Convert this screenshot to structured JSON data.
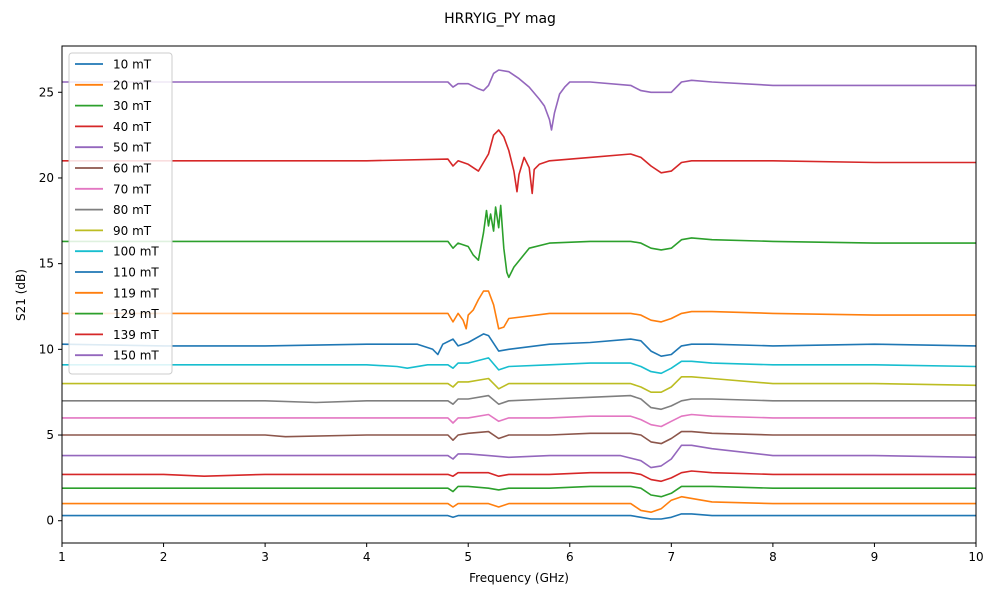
{
  "chart_data": {
    "type": "line",
    "title": "HRRYIG_PY mag",
    "xlabel": "Frequency (GHz)",
    "ylabel": "S21 (dB)",
    "xlim": [
      1,
      10
    ],
    "ylim": [
      -1.3,
      27.7
    ],
    "xticks": [
      1,
      2,
      3,
      4,
      5,
      6,
      7,
      8,
      9,
      10
    ],
    "yticks": [
      0,
      5,
      10,
      15,
      20,
      25
    ],
    "grid": false,
    "legend_position": "top-left",
    "series": [
      {
        "name": "10 mT",
        "color": "#1f77b4",
        "x": [
          1,
          2,
          3,
          4,
          4.8,
          4.85,
          4.9,
          5.0,
          5.2,
          5.4,
          5.8,
          6.2,
          6.6,
          6.7,
          6.8,
          6.9,
          7.0,
          7.1,
          7.2,
          7.4,
          8,
          9,
          10
        ],
        "y": [
          0.3,
          0.3,
          0.3,
          0.3,
          0.3,
          0.2,
          0.3,
          0.3,
          0.3,
          0.3,
          0.3,
          0.3,
          0.3,
          0.2,
          0.1,
          0.1,
          0.2,
          0.4,
          0.4,
          0.3,
          0.3,
          0.3,
          0.3
        ]
      },
      {
        "name": "20 mT",
        "color": "#ff7f0e",
        "x": [
          1,
          2,
          3,
          4,
          4.8,
          4.85,
          4.9,
          5.0,
          5.2,
          5.3,
          5.4,
          5.8,
          6.2,
          6.6,
          6.7,
          6.8,
          6.9,
          7.0,
          7.1,
          7.2,
          7.4,
          8,
          9,
          10
        ],
        "y": [
          1.0,
          1.0,
          1.0,
          1.0,
          1.0,
          0.8,
          1.0,
          1.0,
          1.0,
          0.8,
          1.0,
          1.0,
          1.0,
          1.0,
          0.6,
          0.5,
          0.7,
          1.2,
          1.4,
          1.3,
          1.1,
          1.0,
          1.0,
          1.0
        ]
      },
      {
        "name": "30 mT",
        "color": "#2ca02c",
        "x": [
          1,
          2,
          3,
          4,
          4.8,
          4.85,
          4.9,
          5.0,
          5.2,
          5.3,
          5.4,
          5.8,
          6.2,
          6.6,
          6.7,
          6.8,
          6.9,
          7.0,
          7.1,
          7.2,
          7.4,
          8,
          9,
          10
        ],
        "y": [
          1.9,
          1.9,
          1.9,
          1.9,
          1.9,
          1.7,
          2.0,
          2.0,
          1.9,
          1.8,
          1.9,
          1.9,
          2.0,
          2.0,
          1.9,
          1.5,
          1.4,
          1.6,
          2.0,
          2.0,
          2.0,
          1.9,
          1.9,
          1.9
        ]
      },
      {
        "name": "40 mT",
        "color": "#d62728",
        "x": [
          1,
          2,
          2.4,
          3,
          4,
          4.8,
          4.85,
          4.9,
          5.0,
          5.2,
          5.3,
          5.4,
          5.8,
          6.2,
          6.6,
          6.7,
          6.8,
          6.9,
          7.0,
          7.1,
          7.2,
          7.4,
          8,
          9,
          10
        ],
        "y": [
          2.7,
          2.7,
          2.6,
          2.7,
          2.7,
          2.7,
          2.6,
          2.8,
          2.8,
          2.8,
          2.6,
          2.7,
          2.7,
          2.8,
          2.8,
          2.7,
          2.4,
          2.3,
          2.5,
          2.8,
          2.9,
          2.8,
          2.7,
          2.7,
          2.7
        ]
      },
      {
        "name": "50 mT",
        "color": "#9467bd",
        "x": [
          1,
          2,
          3,
          4,
          4.8,
          4.85,
          4.9,
          5.0,
          5.2,
          5.4,
          5.8,
          6.2,
          6.5,
          6.7,
          6.8,
          6.9,
          7.0,
          7.1,
          7.2,
          7.4,
          8,
          9,
          10
        ],
        "y": [
          3.8,
          3.8,
          3.8,
          3.8,
          3.8,
          3.6,
          3.9,
          3.9,
          3.8,
          3.7,
          3.8,
          3.8,
          3.8,
          3.5,
          3.1,
          3.2,
          3.6,
          4.4,
          4.4,
          4.2,
          3.8,
          3.8,
          3.7
        ]
      },
      {
        "name": "60 mT",
        "color": "#8c564b",
        "x": [
          1,
          2,
          3,
          3.2,
          4,
          4.8,
          4.85,
          4.9,
          5.0,
          5.2,
          5.3,
          5.4,
          5.8,
          6.2,
          6.6,
          6.7,
          6.8,
          6.9,
          7.0,
          7.1,
          7.2,
          7.4,
          8,
          9,
          10
        ],
        "y": [
          5.0,
          5.0,
          5.0,
          4.9,
          5.0,
          5.0,
          4.7,
          5.0,
          5.1,
          5.2,
          4.8,
          5.0,
          5.0,
          5.1,
          5.1,
          5.0,
          4.6,
          4.5,
          4.8,
          5.2,
          5.2,
          5.1,
          5.0,
          5.0,
          5.0
        ]
      },
      {
        "name": "70 mT",
        "color": "#e377c2",
        "x": [
          1,
          2,
          3,
          4,
          4.8,
          4.85,
          4.9,
          5.0,
          5.2,
          5.3,
          5.4,
          5.8,
          6.2,
          6.6,
          6.7,
          6.8,
          6.9,
          7.0,
          7.1,
          7.2,
          7.4,
          8,
          9,
          10
        ],
        "y": [
          6.0,
          6.0,
          6.0,
          6.0,
          6.0,
          5.7,
          6.0,
          6.0,
          6.2,
          5.8,
          6.0,
          6.0,
          6.1,
          6.1,
          5.9,
          5.6,
          5.5,
          5.8,
          6.1,
          6.2,
          6.1,
          6.0,
          6.0,
          6.0
        ]
      },
      {
        "name": "80 mT",
        "color": "#7f7f7f",
        "x": [
          1,
          2,
          3,
          3.5,
          4,
          4.8,
          4.85,
          4.9,
          5.0,
          5.2,
          5.3,
          5.4,
          5.8,
          6.2,
          6.6,
          6.7,
          6.8,
          6.9,
          7.0,
          7.1,
          7.2,
          7.4,
          8,
          9,
          10
        ],
        "y": [
          7.0,
          7.0,
          7.0,
          6.9,
          7.0,
          7.0,
          6.8,
          7.1,
          7.1,
          7.3,
          6.8,
          7.0,
          7.1,
          7.2,
          7.3,
          7.1,
          6.6,
          6.5,
          6.7,
          7.0,
          7.1,
          7.1,
          7.0,
          7.0,
          7.0
        ]
      },
      {
        "name": "90 mT",
        "color": "#bcbd22",
        "x": [
          1,
          2,
          3,
          4,
          4.8,
          4.85,
          4.9,
          5.0,
          5.2,
          5.3,
          5.4,
          5.8,
          6.2,
          6.6,
          6.7,
          6.8,
          6.9,
          7.0,
          7.1,
          7.2,
          7.4,
          8,
          9,
          10
        ],
        "y": [
          8.0,
          8.0,
          8.0,
          8.0,
          8.0,
          7.8,
          8.1,
          8.1,
          8.3,
          7.7,
          8.0,
          8.0,
          8.0,
          8.0,
          7.8,
          7.5,
          7.5,
          7.8,
          8.4,
          8.4,
          8.3,
          8.0,
          8.0,
          7.9
        ]
      },
      {
        "name": "100 mT",
        "color": "#17becf",
        "x": [
          1,
          2,
          3,
          4,
          4.3,
          4.4,
          4.6,
          4.8,
          4.85,
          4.9,
          5.0,
          5.2,
          5.3,
          5.4,
          5.8,
          6.2,
          6.6,
          6.7,
          6.8,
          6.9,
          7.0,
          7.1,
          7.2,
          7.4,
          8,
          9,
          10
        ],
        "y": [
          9.1,
          9.1,
          9.1,
          9.1,
          9.0,
          8.9,
          9.1,
          9.1,
          8.9,
          9.2,
          9.2,
          9.5,
          8.8,
          9.0,
          9.1,
          9.2,
          9.2,
          9.0,
          8.7,
          8.6,
          8.9,
          9.3,
          9.3,
          9.2,
          9.1,
          9.1,
          9.0
        ]
      },
      {
        "name": "110 mT",
        "color": "#1f77b4",
        "x": [
          1,
          2,
          3,
          4,
          4.5,
          4.65,
          4.7,
          4.75,
          4.85,
          4.9,
          5.0,
          5.15,
          5.2,
          5.3,
          5.4,
          5.8,
          6.2,
          6.6,
          6.7,
          6.8,
          6.9,
          7.0,
          7.1,
          7.2,
          7.4,
          8,
          9,
          10
        ],
        "y": [
          10.3,
          10.2,
          10.2,
          10.3,
          10.3,
          10.0,
          9.7,
          10.3,
          10.6,
          10.2,
          10.4,
          10.9,
          10.8,
          9.9,
          10.0,
          10.3,
          10.4,
          10.6,
          10.5,
          9.9,
          9.6,
          9.7,
          10.2,
          10.3,
          10.3,
          10.2,
          10.3,
          10.2
        ]
      },
      {
        "name": "119 mT",
        "color": "#ff7f0e",
        "x": [
          1,
          2,
          3,
          4,
          4.8,
          4.85,
          4.9,
          4.95,
          4.98,
          5.0,
          5.05,
          5.1,
          5.15,
          5.2,
          5.25,
          5.3,
          5.35,
          5.4,
          5.8,
          6.2,
          6.6,
          6.7,
          6.8,
          6.9,
          7.0,
          7.1,
          7.2,
          7.4,
          8,
          9,
          10
        ],
        "y": [
          12.1,
          12.1,
          12.1,
          12.1,
          12.1,
          11.6,
          12.1,
          11.7,
          11.2,
          12.0,
          12.3,
          12.9,
          13.4,
          13.4,
          12.6,
          11.2,
          11.3,
          11.8,
          12.1,
          12.1,
          12.1,
          12.0,
          11.7,
          11.6,
          11.8,
          12.1,
          12.2,
          12.2,
          12.1,
          12.0,
          12.0
        ]
      },
      {
        "name": "129 mT",
        "color": "#2ca02c",
        "x": [
          1,
          2,
          3,
          4,
          4.8,
          4.85,
          4.9,
          5.0,
          5.05,
          5.1,
          5.15,
          5.18,
          5.2,
          5.22,
          5.25,
          5.27,
          5.3,
          5.32,
          5.35,
          5.38,
          5.4,
          5.45,
          5.6,
          5.8,
          6.2,
          6.6,
          6.7,
          6.8,
          6.9,
          7.0,
          7.1,
          7.2,
          7.4,
          8,
          9,
          10
        ],
        "y": [
          16.3,
          16.3,
          16.3,
          16.3,
          16.3,
          15.9,
          16.2,
          16.0,
          15.5,
          15.2,
          16.8,
          18.1,
          17.2,
          17.9,
          16.9,
          18.3,
          17.1,
          18.4,
          15.9,
          14.5,
          14.2,
          14.8,
          15.9,
          16.2,
          16.3,
          16.3,
          16.2,
          15.9,
          15.8,
          15.9,
          16.4,
          16.5,
          16.4,
          16.3,
          16.2,
          16.2
        ]
      },
      {
        "name": "139 mT",
        "color": "#d62728",
        "x": [
          1,
          2,
          3,
          4,
          4.8,
          4.85,
          4.9,
          5.0,
          5.1,
          5.2,
          5.25,
          5.3,
          5.35,
          5.4,
          5.45,
          5.48,
          5.5,
          5.55,
          5.6,
          5.63,
          5.65,
          5.7,
          5.8,
          6.2,
          6.6,
          6.7,
          6.8,
          6.9,
          7.0,
          7.1,
          7.2,
          7.4,
          8,
          9,
          10
        ],
        "y": [
          21.0,
          21.0,
          21.0,
          21.0,
          21.1,
          20.7,
          21.0,
          20.8,
          20.4,
          21.4,
          22.5,
          22.8,
          22.4,
          21.6,
          20.4,
          19.2,
          20.2,
          21.2,
          20.6,
          19.1,
          20.5,
          20.8,
          21.0,
          21.2,
          21.4,
          21.2,
          20.7,
          20.3,
          20.4,
          20.9,
          21.0,
          21.0,
          21.0,
          20.9,
          20.9
        ]
      },
      {
        "name": "150 mT",
        "color": "#9467bd",
        "x": [
          1,
          2,
          3,
          4,
          4.8,
          4.85,
          4.9,
          5.0,
          5.1,
          5.15,
          5.2,
          5.25,
          5.3,
          5.4,
          5.5,
          5.6,
          5.7,
          5.75,
          5.8,
          5.82,
          5.85,
          5.9,
          5.95,
          6.0,
          6.2,
          6.6,
          6.7,
          6.8,
          6.9,
          7.0,
          7.1,
          7.2,
          7.4,
          8,
          9,
          10
        ],
        "y": [
          25.6,
          25.6,
          25.6,
          25.6,
          25.6,
          25.3,
          25.5,
          25.5,
          25.2,
          25.1,
          25.4,
          26.1,
          26.3,
          26.2,
          25.8,
          25.3,
          24.6,
          24.2,
          23.4,
          22.8,
          23.8,
          24.9,
          25.3,
          25.6,
          25.6,
          25.4,
          25.1,
          25.0,
          25.0,
          25.0,
          25.6,
          25.7,
          25.6,
          25.4,
          25.4,
          25.4
        ]
      }
    ]
  }
}
